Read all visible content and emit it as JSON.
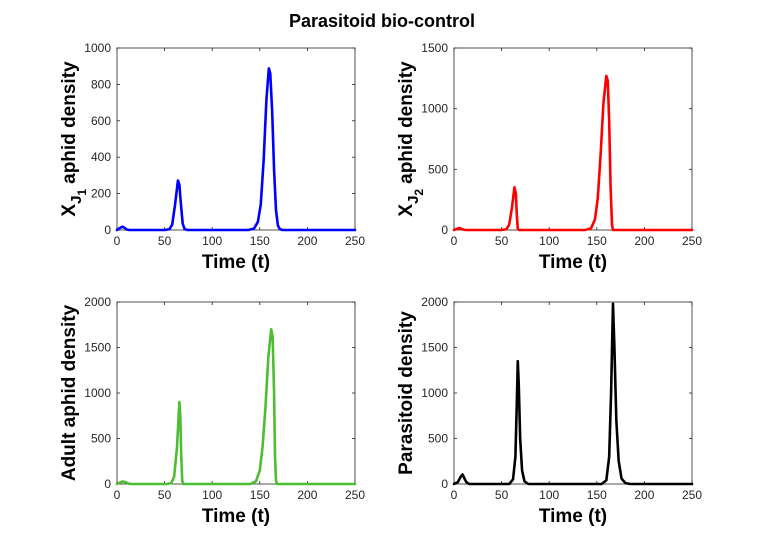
{
  "figure": {
    "title": "Parasitoid bio-control",
    "background": "#ffffff",
    "axis_color": "#262626"
  },
  "chart_data": [
    {
      "type": "line",
      "name": "juvenile-1",
      "title": "",
      "xlabel": "Time (t)",
      "ylabel_main": "X",
      "ylabel_sub": "J",
      "ylabel_subsub": "1",
      "ylabel_rest": "aphid density",
      "xlim": [
        0,
        250
      ],
      "ylim": [
        0,
        1000
      ],
      "xticks": [
        "0",
        "50",
        "100",
        "150",
        "200",
        "250"
      ],
      "yticks": [
        "0",
        "200",
        "400",
        "600",
        "800",
        "1000"
      ],
      "series": [
        {
          "name": "XJ1 aphid density",
          "color": "#0000ff",
          "points": [
            [
              0,
              0
            ],
            [
              3,
              11
            ],
            [
              6,
              18
            ],
            [
              8,
              12
            ],
            [
              10,
              3
            ],
            [
              13,
              0
            ],
            [
              50,
              0
            ],
            [
              55,
              4
            ],
            [
              58,
              30
            ],
            [
              61,
              140
            ],
            [
              64,
              272
            ],
            [
              65.5,
              250
            ],
            [
              67,
              150
            ],
            [
              69,
              35
            ],
            [
              71,
              5
            ],
            [
              74,
              0
            ],
            [
              138,
              0
            ],
            [
              144,
              8
            ],
            [
              148,
              45
            ],
            [
              151,
              140
            ],
            [
              154,
              380
            ],
            [
              157,
              720
            ],
            [
              159.5,
              888
            ],
            [
              161,
              860
            ],
            [
              163,
              650
            ],
            [
              165,
              330
            ],
            [
              167,
              110
            ],
            [
              169,
              25
            ],
            [
              171,
              5
            ],
            [
              174,
              0
            ],
            [
              250,
              0
            ]
          ]
        }
      ]
    },
    {
      "type": "line",
      "name": "juvenile-2",
      "title": "",
      "xlabel": "Time (t)",
      "ylabel_main": "X",
      "ylabel_sub": "J",
      "ylabel_subsub": "2",
      "ylabel_rest": "aphid density",
      "xlim": [
        0,
        250
      ],
      "ylim": [
        0,
        1500
      ],
      "xticks": [
        "0",
        "50",
        "100",
        "150",
        "200",
        "250"
      ],
      "yticks": [
        "0",
        "500",
        "1000",
        "1500"
      ],
      "series": [
        {
          "name": "XJ2 aphid density",
          "color": "#ff0000",
          "points": [
            [
              0,
              0
            ],
            [
              3,
              10
            ],
            [
              6,
              16
            ],
            [
              8,
              10
            ],
            [
              10,
              2
            ],
            [
              13,
              0
            ],
            [
              50,
              0
            ],
            [
              55,
              6
            ],
            [
              58,
              45
            ],
            [
              61,
              190
            ],
            [
              63.5,
              352
            ],
            [
              65,
              300
            ],
            [
              66,
              120
            ],
            [
              67,
              10
            ],
            [
              68,
              0
            ],
            [
              138,
              0
            ],
            [
              144,
              15
            ],
            [
              148,
              85
            ],
            [
              151,
              260
            ],
            [
              154,
              620
            ],
            [
              157,
              1050
            ],
            [
              160,
              1270
            ],
            [
              161.5,
              1230
            ],
            [
              163,
              900
            ],
            [
              164.5,
              350
            ],
            [
              166,
              40
            ],
            [
              167,
              0
            ],
            [
              250,
              0
            ]
          ]
        }
      ]
    },
    {
      "type": "line",
      "name": "adult",
      "title": "",
      "xlabel": "Time (t)",
      "ylabel": "Adult aphid density",
      "xlim": [
        0,
        250
      ],
      "ylim": [
        0,
        2000
      ],
      "xticks": [
        "0",
        "50",
        "100",
        "150",
        "200",
        "250"
      ],
      "yticks": [
        "0",
        "500",
        "1000",
        "1500",
        "2000"
      ],
      "series": [
        {
          "name": "Adult aphid density",
          "color": "#4dbd33",
          "points": [
            [
              0,
              0
            ],
            [
              3,
              15
            ],
            [
              6,
              28
            ],
            [
              9,
              20
            ],
            [
              12,
              5
            ],
            [
              15,
              0
            ],
            [
              52,
              0
            ],
            [
              57,
              10
            ],
            [
              60,
              80
            ],
            [
              63,
              400
            ],
            [
              65.5,
              900
            ],
            [
              66.5,
              750
            ],
            [
              67.5,
              300
            ],
            [
              68.5,
              40
            ],
            [
              69.5,
              0
            ],
            [
              140,
              0
            ],
            [
              146,
              30
            ],
            [
              150,
              150
            ],
            [
              153,
              420
            ],
            [
              156,
              850
            ],
            [
              159,
              1400
            ],
            [
              162,
              1700
            ],
            [
              163.5,
              1620
            ],
            [
              165,
              1000
            ],
            [
              166,
              300
            ],
            [
              167,
              40
            ],
            [
              168,
              0
            ],
            [
              250,
              0
            ]
          ]
        }
      ]
    },
    {
      "type": "line",
      "name": "parasitoid",
      "title": "",
      "xlabel": "Time (t)",
      "ylabel": "Parasitoid density",
      "xlim": [
        0,
        250
      ],
      "ylim": [
        0,
        2000
      ],
      "xticks": [
        "0",
        "50",
        "100",
        "150",
        "200",
        "250"
      ],
      "yticks": [
        "0",
        "500",
        "1000",
        "1500",
        "2000"
      ],
      "series": [
        {
          "name": "Parasitoid density",
          "color": "#000000",
          "points": [
            [
              0,
              0
            ],
            [
              4,
              20
            ],
            [
              7,
              80
            ],
            [
              9,
              105
            ],
            [
              11,
              60
            ],
            [
              13,
              20
            ],
            [
              16,
              0
            ],
            [
              58,
              0
            ],
            [
              62,
              50
            ],
            [
              64.5,
              300
            ],
            [
              66,
              900
            ],
            [
              67,
              1350
            ],
            [
              68,
              1100
            ],
            [
              69.5,
              500
            ],
            [
              71.5,
              150
            ],
            [
              74,
              30
            ],
            [
              78,
              0
            ],
            [
              155,
              0
            ],
            [
              160,
              40
            ],
            [
              163,
              300
            ],
            [
              165,
              1000
            ],
            [
              167,
              1980
            ],
            [
              168.5,
              1500
            ],
            [
              170.5,
              700
            ],
            [
              173,
              250
            ],
            [
              176,
              60
            ],
            [
              180,
              10
            ],
            [
              185,
              0
            ],
            [
              250,
              0
            ]
          ]
        }
      ]
    }
  ]
}
